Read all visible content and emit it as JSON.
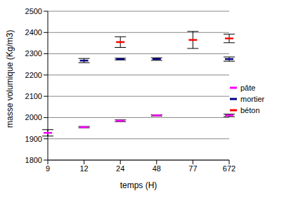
{
  "chart_data": {
    "type": "scatter",
    "x_label": "temps (H)",
    "y_label": "masse volumique (Kg/m3)",
    "categories": [
      "9",
      "12",
      "24",
      "48",
      "77",
      "672"
    ],
    "series": [
      {
        "name": "pâte",
        "color": "#ff00ff",
        "marker": "dash",
        "values": [
          1928,
          1955,
          1985,
          2010,
          null,
          2010
        ],
        "errors": [
          15,
          3,
          4,
          3,
          null,
          6
        ]
      },
      {
        "name": "mortier",
        "color": "#000080",
        "marker": "dash",
        "values": [
          null,
          2268,
          2275,
          2275,
          null,
          2275
        ],
        "errors": [
          null,
          10,
          4,
          6,
          null,
          10
        ]
      },
      {
        "name": "béton",
        "color": "#ff0000",
        "marker": "dash",
        "values": [
          null,
          null,
          2355,
          null,
          2365,
          2372
        ],
        "errors": [
          null,
          null,
          25,
          null,
          40,
          20
        ]
      }
    ],
    "ylim": [
      1800,
      2500
    ],
    "yticks": [
      1800,
      1900,
      2000,
      2100,
      2200,
      2300,
      2400,
      2500
    ],
    "grid": true,
    "legend": "right"
  }
}
